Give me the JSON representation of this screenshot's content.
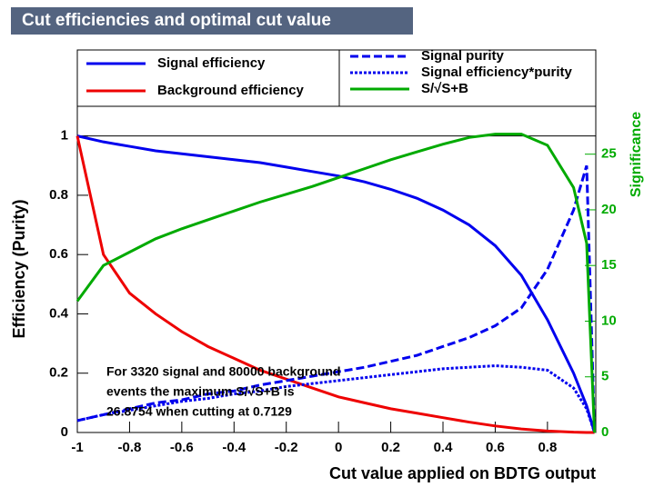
{
  "chart_data": {
    "type": "line",
    "title": "Cut efficiencies and optimal cut value",
    "x_label": "Cut value applied on BDTG output",
    "y_label": "Efficiency (Purity)",
    "y2_label": "Significance",
    "annotation": [
      "For 3320 signal and 80000 background",
      "events the maximum S/√S+B is",
      "26.8754 when cutting at 0.7129"
    ],
    "x": [
      -1,
      -0.9,
      -0.8,
      -0.7,
      -0.6,
      -0.5,
      -0.4,
      -0.3,
      -0.2,
      -0.1,
      0,
      0.1,
      0.2,
      0.3,
      0.4,
      0.5,
      0.6,
      0.7,
      0.8,
      0.9,
      0.95,
      0.98
    ],
    "series": [
      {
        "name": "Signal efficiency",
        "color": "#0000ee",
        "dash": "solid",
        "values": [
          1.0,
          0.98,
          0.965,
          0.95,
          0.94,
          0.93,
          0.92,
          0.91,
          0.895,
          0.88,
          0.865,
          0.845,
          0.82,
          0.79,
          0.75,
          0.7,
          0.63,
          0.53,
          0.38,
          0.2,
          0.09,
          0.0
        ]
      },
      {
        "name": "Background efficiency",
        "color": "#ee0000",
        "dash": "solid",
        "values": [
          1.0,
          0.6,
          0.47,
          0.4,
          0.34,
          0.29,
          0.25,
          0.21,
          0.18,
          0.15,
          0.12,
          0.1,
          0.08,
          0.065,
          0.05,
          0.035,
          0.022,
          0.012,
          0.005,
          0.001,
          0.0,
          0.0
        ]
      },
      {
        "name": "Signal purity",
        "color": "#0000ee",
        "dash": "dashed",
        "values": [
          0.04,
          0.06,
          0.08,
          0.1,
          0.11,
          0.13,
          0.14,
          0.16,
          0.175,
          0.19,
          0.205,
          0.22,
          0.24,
          0.26,
          0.29,
          0.32,
          0.36,
          0.42,
          0.55,
          0.75,
          0.9,
          0.0
        ]
      },
      {
        "name": "Signal efficiency*purity",
        "color": "#0000ee",
        "dash": "dotted",
        "values": [
          0.04,
          0.06,
          0.075,
          0.09,
          0.105,
          0.115,
          0.13,
          0.14,
          0.155,
          0.165,
          0.175,
          0.185,
          0.195,
          0.205,
          0.215,
          0.22,
          0.225,
          0.22,
          0.21,
          0.15,
          0.08,
          0.0
        ]
      },
      {
        "name": "S/√S+B",
        "color": "#00aa00",
        "dash": "solid",
        "axis": "y2",
        "values": [
          11.8,
          15,
          16.2,
          17.4,
          18.3,
          19.1,
          19.9,
          20.7,
          21.4,
          22.1,
          22.9,
          23.7,
          24.5,
          25.2,
          25.9,
          26.5,
          26.8,
          26.8,
          25.8,
          22,
          17,
          0
        ]
      }
    ],
    "xlim": [
      -1,
      0.985
    ],
    "xticks": [
      -1,
      -0.8,
      -0.6,
      -0.4,
      -0.2,
      0,
      0.2,
      0.4,
      0.6,
      0.8
    ],
    "ylim": [
      0,
      1.1
    ],
    "yticks": [
      0,
      0.2,
      0.4,
      0.6,
      0.8,
      1
    ],
    "y2lim": [
      0,
      29.3
    ],
    "y2ticks": [
      0,
      5,
      10,
      15,
      20,
      25
    ],
    "y2color": "#00aa00",
    "reference_line": 1
  }
}
